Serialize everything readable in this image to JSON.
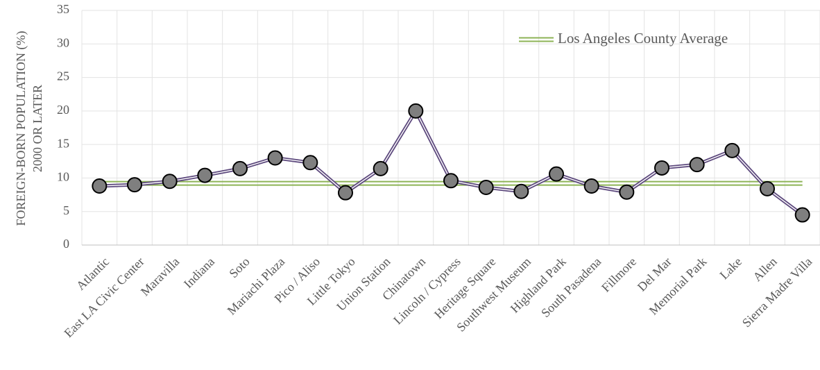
{
  "chart_data": {
    "type": "line",
    "y_label": [
      "FOREIGN-BORN POPULATION (%)",
      "2000 OR LATER"
    ],
    "categories": [
      "Atlantic",
      "East LA Civic Center",
      "Maravilla",
      "Indiana",
      "Soto",
      "Mariachi Plaza",
      "Pico / Aliso",
      "Little Tokyo",
      "Union Station",
      "Chinatown",
      "Lincoln / Cypress",
      "Heritage Square",
      "Southwest Museum",
      "Highland Park",
      "South Pasadena",
      "Fillmore",
      "Del Mar",
      "Memorial Park",
      "Lake",
      "Allen",
      "Sierra Madre Villa"
    ],
    "series": [
      {
        "color": "#5e4a7e",
        "marker": true,
        "values": [
          8.8,
          9.0,
          9.5,
          10.4,
          11.4,
          13.0,
          12.3,
          7.8,
          11.4,
          20.0,
          9.6,
          8.6,
          8.0,
          10.6,
          8.8,
          7.9,
          11.5,
          12.0,
          14.1,
          8.4,
          4.5
        ]
      },
      {
        "name": "Los Angeles County Average",
        "color": "#8db356",
        "marker": false,
        "values": [
          9.2,
          9.2,
          9.2,
          9.2,
          9.2,
          9.2,
          9.2,
          9.2,
          9.2,
          9.2,
          9.2,
          9.2,
          9.2,
          9.2,
          9.2,
          9.2,
          9.2,
          9.2,
          9.2,
          9.2,
          9.2
        ]
      }
    ],
    "ylim": [
      0,
      35
    ],
    "yticks": [
      0,
      5,
      10,
      15,
      20,
      25,
      30,
      35
    ],
    "grid": true,
    "legend": "top-right"
  }
}
